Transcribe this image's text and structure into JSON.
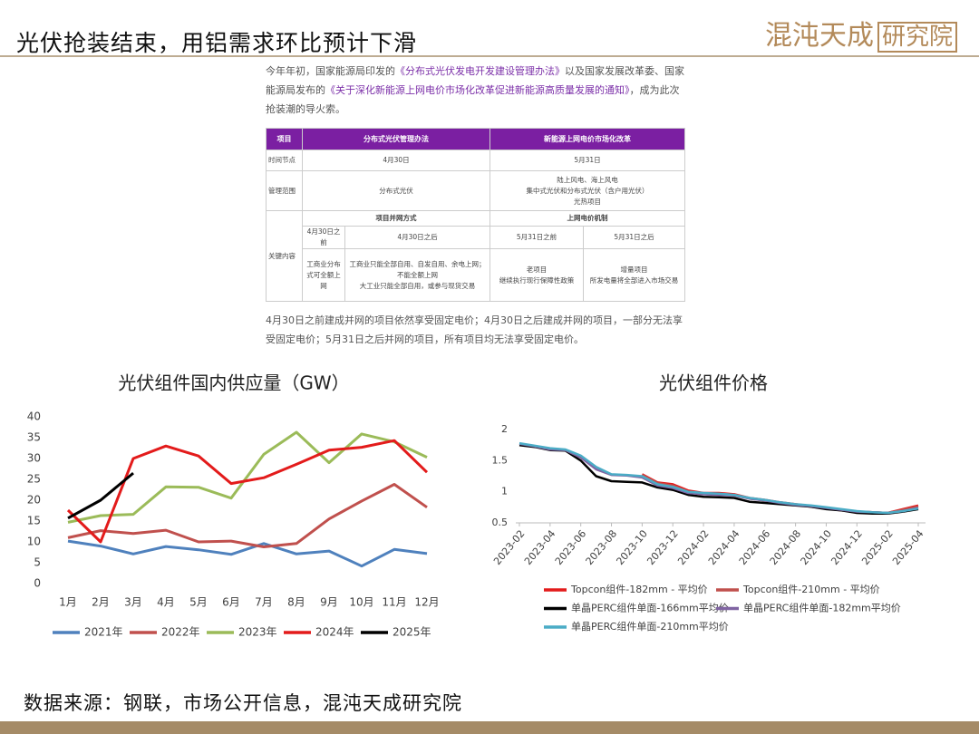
{
  "header": {
    "title": "光伏抢装结束，用铝需求环比预计下滑",
    "logo": [
      "混沌天成",
      "研究院"
    ]
  },
  "intro": {
    "parts": [
      "今年年初，国家能源局印发的",
      "《分布式光伏发电开发建设管理办法》",
      "以及国家发展改革委、国家能源局发布的",
      "《关于深化新能源上网电价市场化改革促进新能源高质量发展的通知》",
      "，成为此次抢装潮的导火索。"
    ]
  },
  "table": {
    "header": [
      "项目",
      "分布式光伏管理办法",
      "新能源上网电价市场化改革"
    ],
    "time": {
      "label": "时间节点",
      "values": [
        "4月30日",
        "5月31日"
      ]
    },
    "scope": {
      "label": "管理范围",
      "distributed": "分布式光伏",
      "reform": [
        "陆上风电、海上风电",
        "集中式光伏和分布式光伏（含户用光伏）",
        "光热项目"
      ]
    },
    "key": {
      "label": "关键内容",
      "subheads": [
        "项目并网方式",
        "上网电价机制"
      ],
      "subcols": [
        "4月30日之前",
        "4月30日之后",
        "5月31日之前",
        "5月31日之后"
      ],
      "contents": [
        [
          "工商业分布式可全额上网"
        ],
        [
          "工商业只能全部自用、自发自用、余电上网；不能全额上网",
          "大工业只能全部自用，或参与现货交易"
        ],
        [
          "老项目",
          "继续执行现行保障性政策"
        ],
        [
          "增量项目",
          "所发电量将全部进入市场交易"
        ]
      ]
    }
  },
  "note": "4月30日之前建成并网的项目依然享受固定电价；4月30日之后建成并网的项目，一部分无法享受固定电价；5月31日之后并网的项目，所有项目均无法享受固定电价。",
  "source": "数据来源：钢联，市场公开信息，混沌天成研究院",
  "chart_data": [
    {
      "type": "line",
      "title": "光伏组件国内供应量（GW）",
      "categories": [
        "1月",
        "2月",
        "3月",
        "4月",
        "5月",
        "6月",
        "7月",
        "8月",
        "9月",
        "10月",
        "11月",
        "12月"
      ],
      "ylim": [
        0,
        40
      ],
      "yticks": [
        0,
        5,
        10,
        15,
        20,
        25,
        30,
        35,
        40
      ],
      "grid": false,
      "series": [
        {
          "name": "2021年",
          "color": "#4f81bd",
          "values": [
            10.2,
            9.0,
            7.1,
            8.9,
            8.1,
            7.0,
            9.6,
            7.1,
            7.8,
            4.2,
            8.2,
            7.2
          ]
        },
        {
          "name": "2022年",
          "color": "#c0504d",
          "values": [
            11.0,
            12.7,
            12.0,
            12.8,
            10.0,
            10.2,
            8.8,
            9.6,
            15.5,
            19.8,
            23.8,
            18.3
          ]
        },
        {
          "name": "2023年",
          "color": "#9bbb59",
          "values": [
            14.7,
            16.3,
            16.6,
            23.2,
            23.1,
            20.5,
            31.0,
            36.3,
            29.0,
            35.9,
            34.0,
            30.3
          ]
        },
        {
          "name": "2024年",
          "color": "#e31b1b",
          "values": [
            17.6,
            10.0,
            30.0,
            33.0,
            30.6,
            24.0,
            25.4,
            28.6,
            32.0,
            32.7,
            34.3,
            26.7
          ]
        },
        {
          "name": "2025年",
          "color": "#000000",
          "values": [
            15.7,
            20.0,
            26.5,
            null,
            null,
            null,
            null,
            null,
            null,
            null,
            null,
            null
          ]
        }
      ]
    },
    {
      "type": "line",
      "title": "光伏组件价格",
      "categories": [
        "2023-02",
        null,
        "2023-04",
        null,
        "2023-06",
        null,
        "2023-08",
        null,
        "2023-10",
        null,
        "2023-12",
        null,
        "2024-02",
        null,
        "2024-04",
        null,
        "2024-06",
        null,
        "2024-08",
        null,
        "2024-10",
        null,
        "2024-12",
        null,
        "2025-02",
        null,
        "2025-04"
      ],
      "ylim": [
        0.5,
        2
      ],
      "yticks": [
        0.5,
        1,
        1.5,
        2
      ],
      "grid": false,
      "series": [
        {
          "name": "Topcon组件-182mm - 平均价",
          "color": "#e31b1b",
          "values": [
            null,
            null,
            null,
            null,
            null,
            null,
            null,
            null,
            1.28,
            1.15,
            1.12,
            1.02,
            0.98,
            0.98,
            0.96,
            0.9,
            0.87,
            0.83,
            0.8,
            0.77,
            0.74,
            0.71,
            0.68,
            0.67,
            0.66,
            0.72,
            0.78
          ]
        },
        {
          "name": "Topcon组件-210mm - 平均价",
          "color": "#c0504d",
          "values": [
            null,
            null,
            null,
            null,
            null,
            null,
            null,
            null,
            1.27,
            1.14,
            1.1,
            1.0,
            0.97,
            0.97,
            0.95,
            0.89,
            0.86,
            0.82,
            0.79,
            0.76,
            0.73,
            0.7,
            0.68,
            0.67,
            0.66,
            0.71,
            0.76
          ]
        },
        {
          "name": "单晶PERC组件单面-166mm平均价",
          "color": "#000000",
          "values": [
            1.75,
            1.72,
            1.67,
            1.66,
            1.5,
            1.25,
            1.17,
            1.16,
            1.15,
            1.07,
            1.03,
            0.95,
            0.92,
            0.91,
            0.9,
            0.84,
            0.82,
            0.8,
            0.78,
            0.76,
            0.72,
            0.7,
            0.66,
            0.65,
            0.65,
            0.68,
            0.72
          ]
        },
        {
          "name": "单晶PERC组件单面-182mm平均价",
          "color": "#8064a2",
          "values": [
            1.77,
            1.73,
            1.68,
            1.67,
            1.55,
            1.36,
            1.27,
            1.26,
            1.23,
            1.1,
            1.06,
            0.98,
            0.96,
            0.95,
            0.94,
            0.89,
            0.86,
            0.82,
            0.79,
            0.77,
            0.74,
            0.71,
            0.68,
            0.67,
            0.66,
            0.69,
            0.74
          ]
        },
        {
          "name": "单晶PERC组件单面-210mm平均价",
          "color": "#4bacc6",
          "values": [
            1.78,
            1.74,
            1.7,
            1.68,
            1.58,
            1.4,
            1.28,
            1.27,
            1.25,
            1.12,
            1.08,
            1.0,
            0.98,
            0.97,
            0.95,
            0.9,
            0.87,
            0.83,
            0.8,
            0.78,
            0.75,
            0.72,
            0.69,
            0.67,
            0.66,
            0.69,
            0.73
          ]
        }
      ]
    }
  ]
}
